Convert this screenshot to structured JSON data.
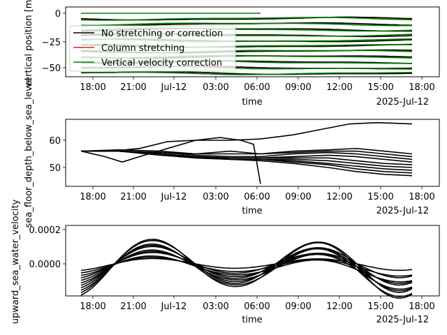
{
  "chart_data": [
    {
      "type": "line",
      "ylabel": "vertical position [m]",
      "xlabel": "time",
      "x_ticks": [
        "18:00",
        "21:00",
        "Jul-12",
        "03:00",
        "06:00",
        "09:00",
        "12:00",
        "15:00",
        "18:00"
      ],
      "x_offset_label": "2025-Jul-12",
      "y_ticks": [
        "0",
        "−25",
        "−50"
      ],
      "ylim": [
        -58,
        3
      ],
      "legend": {
        "placement": "upper-left",
        "entries": [
          {
            "label": "No stretching or correction",
            "color": "#000000"
          },
          {
            "label": "Column stretching",
            "color": "#d62728"
          },
          {
            "label": "Vertical velocity correction",
            "color": "#008000"
          }
        ]
      },
      "series": [
        {
          "color": "#d62728",
          "levels": [
            -5,
            -10,
            -15,
            -20,
            -25,
            -30,
            -35,
            -40,
            -45,
            -50,
            -55
          ]
        },
        {
          "color": "#000000",
          "levels": [
            -5,
            -10,
            -15,
            -20,
            -25,
            -30,
            -35,
            -40,
            -45,
            -50,
            -55
          ]
        },
        {
          "color": "#008000",
          "levels": [
            0,
            -5,
            -10,
            -15,
            -20,
            -25,
            -30,
            -35,
            -40,
            -45,
            -50,
            -55
          ]
        }
      ]
    },
    {
      "type": "line",
      "ylabel": "sea_floor_depth_below_sea_level",
      "xlabel": "time",
      "x_ticks": [
        "18:00",
        "21:00",
        "Jul-12",
        "03:00",
        "06:00",
        "09:00",
        "12:00",
        "15:00",
        "18:00"
      ],
      "x_offset_label": "2025-Jul-12",
      "y_ticks": [
        "50",
        "60"
      ],
      "ylim": [
        43.5,
        67.5
      ],
      "series_count": 11
    },
    {
      "type": "line",
      "ylabel": "upward_sea_water_velocity",
      "xlabel": "time",
      "x_ticks": [
        "18:00",
        "21:00",
        "Jul-12",
        "03:00",
        "06:00",
        "09:00",
        "12:00",
        "15:00",
        "18:00"
      ],
      "x_offset_label": "2025-Jul-12",
      "y_ticks": [
        "0.0002",
        "0.0000"
      ],
      "ylim": [
        -0.00017,
        0.00022
      ],
      "series_count": 11
    }
  ]
}
